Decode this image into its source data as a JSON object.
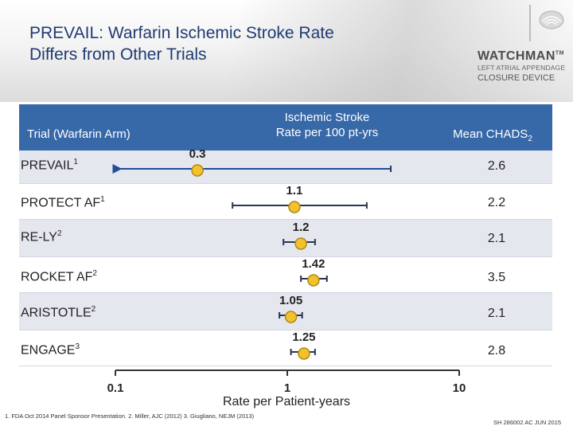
{
  "title_lines": [
    "PREVAIL: Warfarin Ischemic Stroke Rate",
    "Differs from Other Trials"
  ],
  "brand": {
    "name": "WATCHMAN",
    "tm": "TM",
    "subtitle": "LEFT ATRIAL APPENDAGE",
    "subtitle2": "CLOSURE DEVICE",
    "emblem_icon": "lotus-emblem-icon"
  },
  "table_header": {
    "trial": "Trial (Warfarin Arm)",
    "rate_line1": "Ischemic Stroke",
    "rate_line2": "Rate per 100 pt-yrs",
    "chads": "Mean CHADS",
    "chads_sub": "2"
  },
  "rows": [
    {
      "name": "PREVAIL",
      "sup": "1",
      "chads": "2.6"
    },
    {
      "name": "PROTECT AF",
      "sup": "1",
      "chads": "2.2"
    },
    {
      "name": "RE-LY",
      "sup": "2",
      "chads": "2.1"
    },
    {
      "name": "ROCKET AF",
      "sup": "2",
      "chads": "3.5"
    },
    {
      "name": "ARISTOTLE",
      "sup": "2",
      "chads": "2.1"
    },
    {
      "name": "ENGAGE",
      "sup": "3",
      "chads": "2.8"
    }
  ],
  "chart_data": {
    "type": "scatter",
    "subtype": "forest-plot",
    "x_scale": "log10",
    "xlim": [
      0.1,
      10
    ],
    "xticks": [
      0.1,
      1,
      10
    ],
    "xtick_labels": [
      "0.1",
      "1",
      "10"
    ],
    "xlabel": "Rate per Patient-years",
    "series": [
      {
        "name": "PREVAIL",
        "value": 0.3,
        "label": "0.3",
        "ci_low": 0.1,
        "ci_high": 4.0,
        "ci_low_arrow": true
      },
      {
        "name": "PROTECT AF",
        "value": 1.1,
        "label": "1.1",
        "ci_low": 0.48,
        "ci_high": 2.9
      },
      {
        "name": "RE-LY",
        "value": 1.2,
        "label": "1.2",
        "ci_low": 0.95,
        "ci_high": 1.45
      },
      {
        "name": "ROCKET AF",
        "value": 1.42,
        "label": "1.42",
        "ci_low": 1.2,
        "ci_high": 1.7
      },
      {
        "name": "ARISTOTLE",
        "value": 1.05,
        "label": "1.05",
        "ci_low": 0.9,
        "ci_high": 1.22
      },
      {
        "name": "ENGAGE",
        "value": 1.25,
        "label": "1.25",
        "ci_low": 1.05,
        "ci_high": 1.45
      }
    ],
    "marker_color": "#f2c12e",
    "marker_edge": "#b08a10",
    "line_color": "#2a3550",
    "arrow_color": "#1f4e9a"
  },
  "footnote": "1. FDA Oct 2014 Panel Sponsor Presentation. 2. Miller, AJC (2012) 3. Giugliano, NEJM (2013)",
  "code": "SH 286002 AC JUN 2015",
  "colors": {
    "header_blue": "#3768a8",
    "title_blue": "#1f3b73",
    "row_shade": "#e4e7ee"
  }
}
